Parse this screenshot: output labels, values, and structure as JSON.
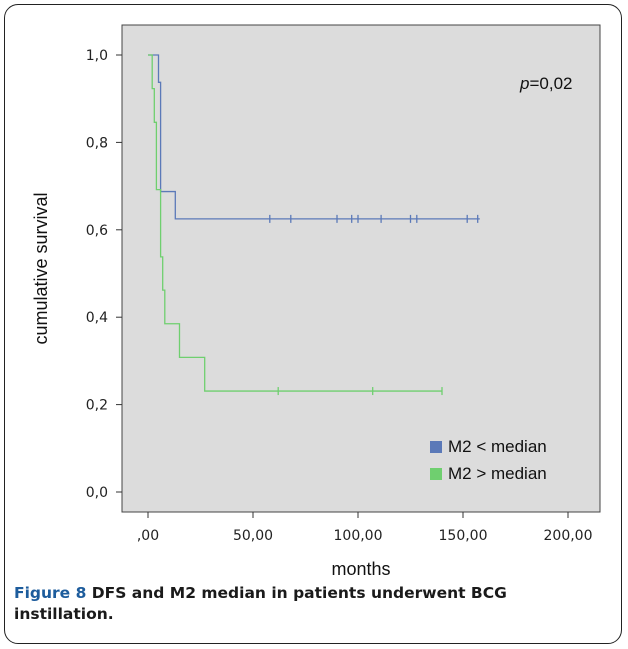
{
  "chart_data": {
    "type": "line",
    "subtype": "kaplan-meier",
    "xlabel": "months",
    "ylabel": "cumulative survival",
    "xlim": [
      0,
      200
    ],
    "ylim": [
      0,
      1
    ],
    "xticks": [
      0,
      50,
      100,
      150,
      200
    ],
    "xtick_labels": [
      ",00",
      "50,00",
      "100,00",
      "150,00",
      "200,00"
    ],
    "yticks": [
      0,
      0.2,
      0.4,
      0.6,
      0.8,
      1.0
    ],
    "ytick_labels": [
      "0,0",
      "0,2",
      "0,4",
      "0,6",
      "0,8",
      "1,0"
    ],
    "annotation": {
      "prefix": "p",
      "text": "=0,02"
    },
    "legend_position": "bottom-right",
    "grid": false,
    "series": [
      {
        "name": "M2 < median",
        "color": "#5b79b8",
        "steps": [
          [
            0,
            1.0
          ],
          [
            5,
            0.9375
          ],
          [
            6,
            0.6875
          ],
          [
            13,
            0.625
          ],
          [
            158,
            0.625
          ]
        ],
        "censored": [
          58,
          68,
          90,
          97,
          100,
          111,
          125,
          128,
          152,
          157
        ]
      },
      {
        "name": "M2 > median",
        "color": "#6fcf6f",
        "steps": [
          [
            0,
            1.0
          ],
          [
            2,
            0.923
          ],
          [
            3,
            0.846
          ],
          [
            4,
            0.692
          ],
          [
            6,
            0.538
          ],
          [
            7,
            0.462
          ],
          [
            8,
            0.385
          ],
          [
            15,
            0.308
          ],
          [
            27,
            0.231
          ],
          [
            140,
            0.231
          ]
        ],
        "censored": [
          62,
          107,
          140
        ]
      }
    ]
  },
  "caption": {
    "label": "Figure 8",
    "text": " DFS and M2 median in patients underwent BCG instillation."
  }
}
